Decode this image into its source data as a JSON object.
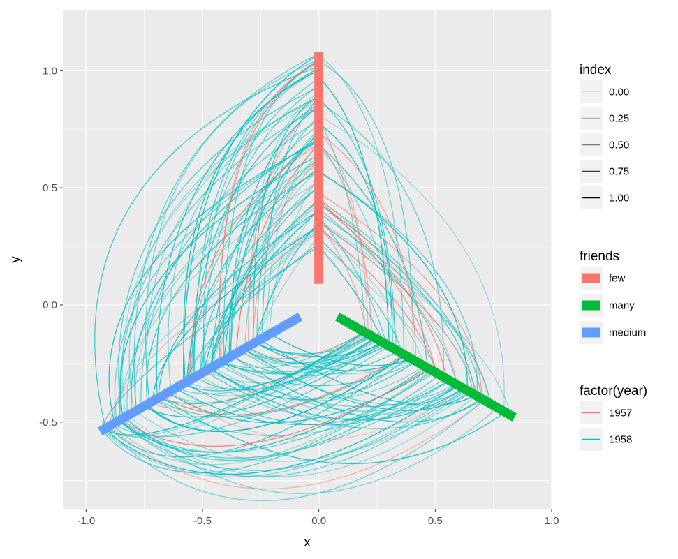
{
  "colors": {
    "panel_bg": "#ebebeb",
    "grid": "#ffffff",
    "few": "#f8766d",
    "many": "#00ba38",
    "medium": "#619cff",
    "year_1957": "#f8766d",
    "year_1958": "#00bfc4",
    "legend_key_bg": "#f2f2f2"
  },
  "chart_data": {
    "type": "network-arcs",
    "xlabel": "x",
    "ylabel": "y",
    "xlim": [
      -1.1,
      1.0
    ],
    "ylim": [
      -0.87,
      1.26
    ],
    "x_ticks": [
      -1.0,
      -0.5,
      0.0,
      0.5,
      1.0
    ],
    "x_tick_labels": [
      "-1.0",
      "-0.5",
      "0.0",
      "0.5",
      "1.0"
    ],
    "y_ticks": [
      -0.5,
      0.0,
      0.5,
      1.0
    ],
    "y_tick_labels": [
      "-0.5",
      "0.0",
      "0.5",
      "1.0"
    ],
    "grid": true,
    "legend_position": "right",
    "axes_segments": [
      {
        "friends": "few",
        "from": [
          0.0,
          0.09
        ],
        "to": [
          0.0,
          1.08
        ]
      },
      {
        "friends": "many",
        "from": [
          0.08,
          -0.05
        ],
        "to": [
          0.84,
          -0.48
        ]
      },
      {
        "friends": "medium",
        "from": [
          -0.08,
          -0.05
        ],
        "to": [
          -0.94,
          -0.54
        ]
      }
    ],
    "legends": [
      {
        "title": "index",
        "type": "alpha",
        "items": [
          "0.00",
          "0.25",
          "0.50",
          "0.75",
          "1.00"
        ],
        "alphas": [
          0.0,
          0.25,
          0.5,
          0.75,
          1.0
        ]
      },
      {
        "title": "friends",
        "type": "fill",
        "items": [
          "few",
          "many",
          "medium"
        ]
      },
      {
        "title": "factor(year)",
        "type": "colour",
        "items": [
          "1957",
          "1958"
        ]
      }
    ]
  }
}
